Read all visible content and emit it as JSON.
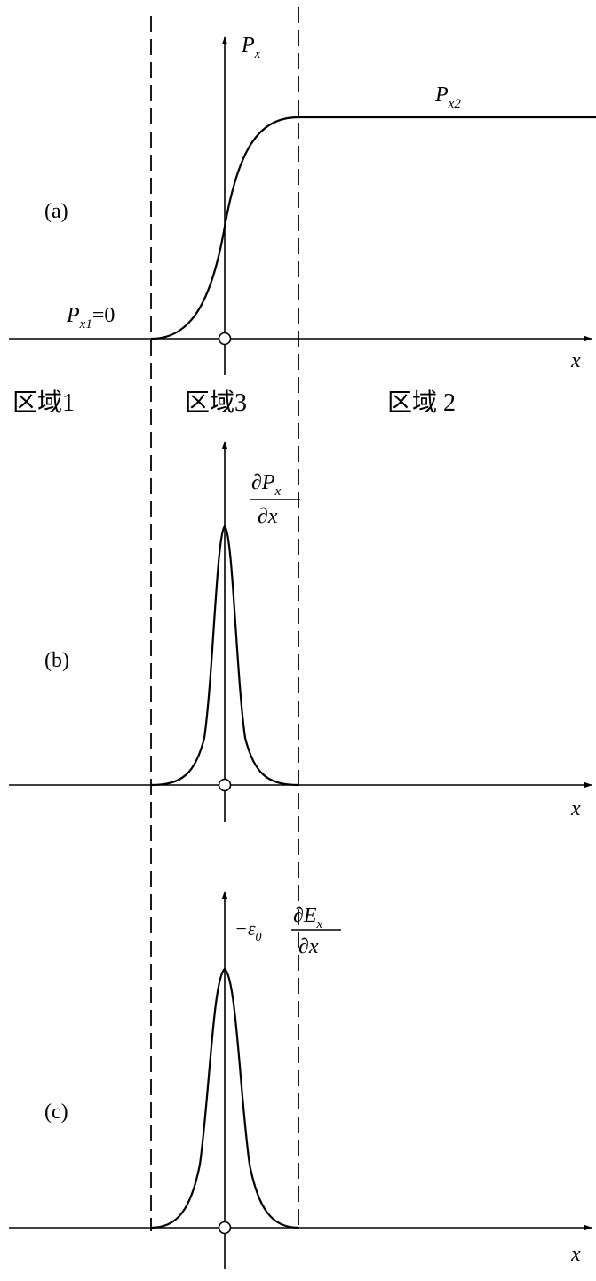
{
  "panels": [
    {
      "label": "(a)",
      "y_axis_label": {
        "base": "P",
        "sub": "x"
      },
      "x_axis_label": "x",
      "left_value_label": {
        "base": "P",
        "sub": "x1",
        "rest": "=0"
      },
      "right_value_label": {
        "base": "P",
        "sub": "x2"
      },
      "origin_symbol": "circle",
      "curve": "step-rise"
    },
    {
      "label": "(b)",
      "y_axis_label": {
        "numerator": "∂P",
        "numerator_sub": "x",
        "denominator": "∂x"
      },
      "x_axis_label": "x",
      "origin_symbol": "circle",
      "curve": "peak"
    },
    {
      "label": "(c)",
      "y_axis_label": {
        "prefix": "−ε",
        "prefix_sub": "0",
        "numerator": "∂E",
        "numerator_sub": "x",
        "denominator": "∂x"
      },
      "x_axis_label": "x",
      "origin_symbol": "circle",
      "curve": "peak"
    }
  ],
  "regions": [
    "区域1",
    "区域3",
    "区域 2"
  ],
  "colors": {
    "ink": "#000000",
    "background": "#ffffff"
  }
}
